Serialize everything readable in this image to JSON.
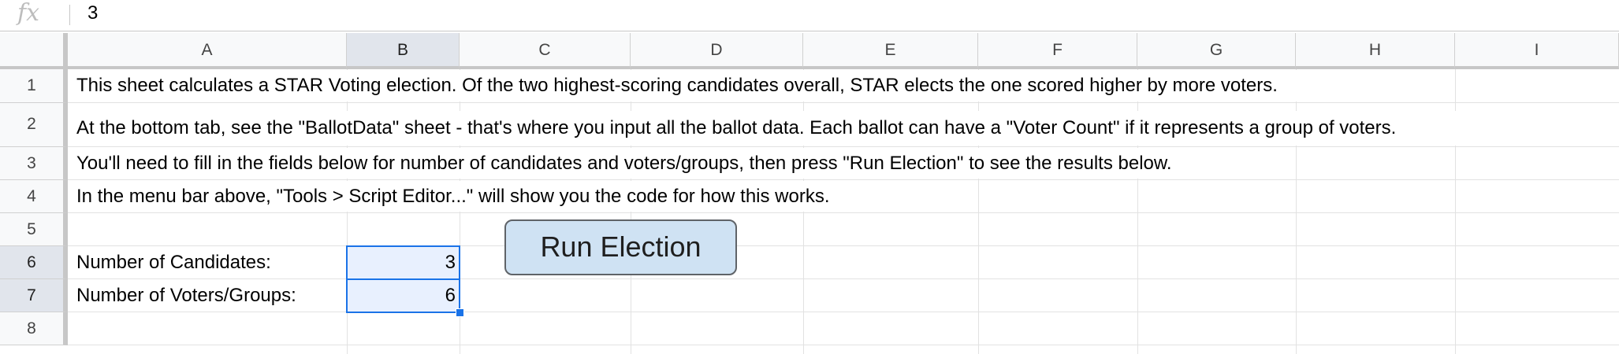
{
  "formula_bar": {
    "icon": "fx-icon",
    "value": "3"
  },
  "columns": [
    "A",
    "B",
    "C",
    "D",
    "E",
    "F",
    "G",
    "H",
    "I"
  ],
  "selected_column": "B",
  "rows": [
    "1",
    "2",
    "3",
    "4",
    "5",
    "6",
    "7",
    "8"
  ],
  "selected_rows": [
    "6",
    "7"
  ],
  "cells": {
    "A1": "This sheet calculates a STAR Voting election. Of the two highest-scoring candidates overall, STAR elects the one scored higher by more voters.",
    "A2": "At the bottom tab, see the \"BallotData\" sheet - that's where you input all the ballot data. Each ballot can have a \"Voter Count\" if it represents a group of voters.",
    "A3": "You'll need to fill in the fields below for number of candidates and voters/groups, then press \"Run Election\" to see the results below.",
    "A4": "In the menu bar above, \"Tools > Script Editor...\" will show you the code for how this works.",
    "A6": "Number of Candidates:",
    "A7": "Number of Voters/Groups:",
    "B6": "3",
    "B7": "6"
  },
  "button": {
    "label": "Run Election"
  },
  "colors": {
    "selection_border": "#1a73e8",
    "selection_fill": "#e8f0fe",
    "button_fill": "#cfe2f3",
    "header_fill": "#f8f9fa"
  }
}
